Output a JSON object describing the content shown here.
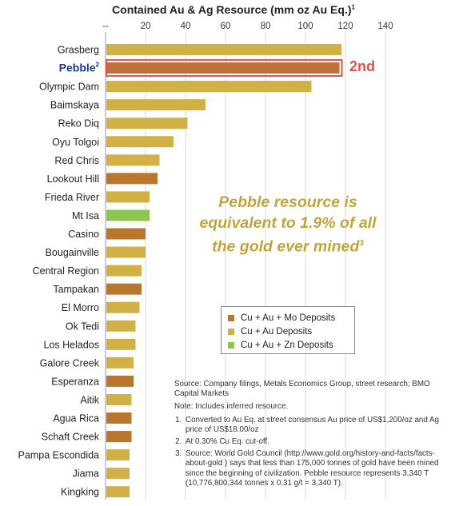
{
  "chart_data": {
    "type": "bar",
    "orientation": "horizontal",
    "title": "Contained Au & Ag Resource (mm oz Au Eq.)",
    "title_footnote": "1",
    "xlim": [
      0,
      140
    ],
    "x_ticks": [
      0,
      20,
      40,
      60,
      80,
      100,
      120,
      140
    ],
    "x_tick_labels": [
      "--",
      "20",
      "40",
      "60",
      "80",
      "100",
      "120",
      "140"
    ],
    "grid": true,
    "categories": [
      "Grasberg",
      "Pebble",
      "Olympic Dam",
      "Baimskaya",
      "Reko Diq",
      "Oyu Tolgoi",
      "Red Chris",
      "Lookout Hill",
      "Frieda River",
      "Mt Isa",
      "Casino",
      "Bougainville",
      "Central Region",
      "Tampakan",
      "El Morro",
      "Ok Tedi",
      "Los Helados",
      "Galore Creek",
      "Esperanza",
      "Aitik",
      "Agua Rica",
      "Schaft Creek",
      "Pampa Escondida",
      "Jiama",
      "Kingking"
    ],
    "values": [
      118,
      117,
      103,
      50,
      41,
      34,
      27,
      26,
      22,
      22,
      20,
      20,
      18,
      18,
      17,
      15,
      15,
      14,
      14,
      13,
      13,
      13,
      12,
      12,
      12
    ],
    "deposit_type": [
      "cu_au",
      "cu_au_mo",
      "cu_au",
      "cu_au",
      "cu_au",
      "cu_au",
      "cu_au",
      "cu_au_mo",
      "cu_au",
      "cu_au_zn",
      "cu_au_mo",
      "cu_au",
      "cu_au",
      "cu_au_mo",
      "cu_au",
      "cu_au",
      "cu_au",
      "cu_au",
      "cu_au_mo",
      "cu_au",
      "cu_au_mo",
      "cu_au_mo",
      "cu_au",
      "cu_au",
      "cu_au"
    ],
    "highlight_index": 1,
    "highlight_label": "Pebble",
    "highlight_footnote": "2",
    "highlight_rank": "2nd",
    "legend_position": "lower-middle",
    "legend": [
      {
        "key": "cu_au_mo",
        "label": "Cu + Au + Mo Deposits",
        "color": "#b9772e"
      },
      {
        "key": "cu_au",
        "label": "Cu + Au Deposits",
        "color": "#d1b045"
      },
      {
        "key": "cu_au_zn",
        "label": "Cu + Au + Zn Deposits",
        "color": "#8cc650"
      }
    ],
    "highlight_colors": {
      "fill": "#c0713a",
      "outline": "#d9534f",
      "label": "#1f3a8a"
    }
  },
  "callout": {
    "line1": "Pebble resource is",
    "line2": "equivalent to 1.9% of all",
    "line3": "the gold ever mined",
    "footnote": "3"
  },
  "notes": {
    "source": "Source: Company filings, Metals Economics Group, street research; BMO Capital Markets",
    "note": "Note: Includes inferred resource.",
    "items": [
      "Converted to Au Eq. at street consensus Au price of US$1,200/oz and Ag price of US$18.00/oz",
      "At 0.30% Cu Eq. cut-off.",
      "Source: World Gold Council (http://www.gold.org/history-and-facts/facts-about-gold ) says that less than 175,000 tonnes of gold have been mined since the beginning of civilization. Pebble resource represents 3,340 T (10,776,800,344 tonnes x 0.31 g/t = 3,340 T)."
    ]
  }
}
